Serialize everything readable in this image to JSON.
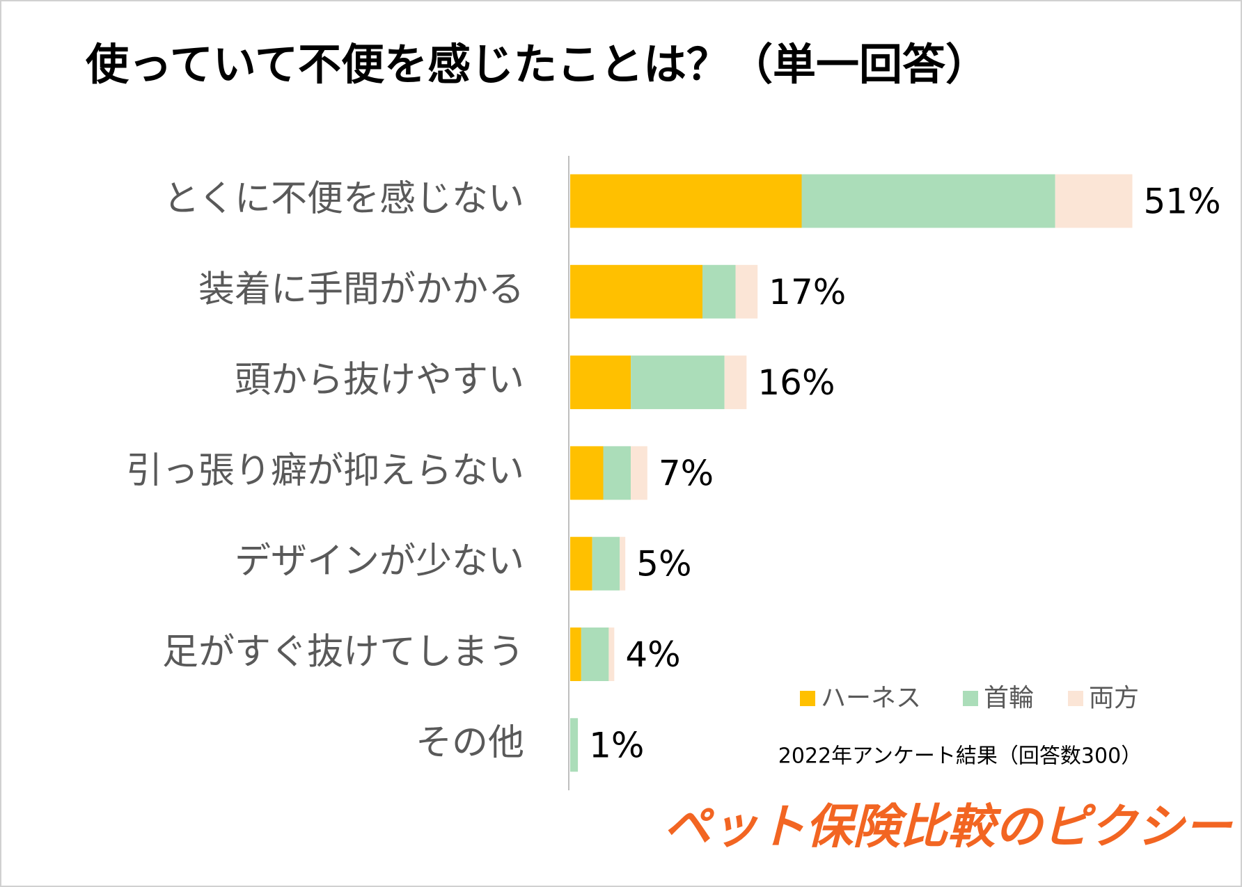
{
  "chart_data": {
    "type": "stacked_barh",
    "title": "使っていて不便を感じたことは？（単一回答）",
    "categories": [
      "とくに不便を感じない",
      "装着に手間がかかる",
      "頭から抜けやすい",
      "引っ張り癖が抑えらない",
      "デザインが少ない",
      "足がすぐ抜けてしまう",
      "その他"
    ],
    "series": [
      {
        "name": "ハーネス",
        "color": "#FFC000",
        "values": [
          21,
          12,
          5.5,
          3,
          2,
          1,
          0
        ]
      },
      {
        "name": "首輪",
        "color": "#ABDDB9",
        "values": [
          23,
          3,
          8.5,
          2.5,
          2.5,
          2.5,
          0.7
        ]
      },
      {
        "name": "両方",
        "color": "#FBE5D6",
        "values": [
          7,
          2,
          2,
          1.5,
          0.5,
          0.5,
          0
        ]
      }
    ],
    "total_labels": [
      "51%",
      "17%",
      "16%",
      "7%",
      "5%",
      "4%",
      "1%"
    ],
    "xlim": [
      0,
      60
    ],
    "legend": "lower right",
    "note": "2022年アンケート結果（回答数300）",
    "brand": "ペット保険比較のピクシー"
  }
}
